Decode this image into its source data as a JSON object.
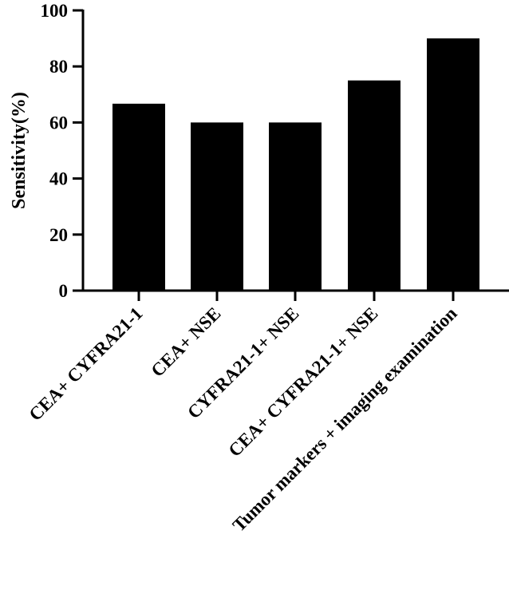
{
  "chart_data": {
    "type": "bar",
    "title": "",
    "xlabel": "",
    "ylabel": "Sensitivity(%)",
    "ylim": [
      0,
      100
    ],
    "yticks": [
      0,
      20,
      40,
      60,
      80,
      100
    ],
    "categories": [
      "CEA+ CYFRA21-1",
      "CEA+ NSE",
      "CYFRA21-1+ NSE",
      "CEA+ CYFRA21-1+ NSE",
      "Tumor markers + imaging examination"
    ],
    "values": [
      66.7,
      60,
      60,
      75,
      90
    ],
    "bar_color": "#000000",
    "grid": false,
    "legend": "none"
  }
}
